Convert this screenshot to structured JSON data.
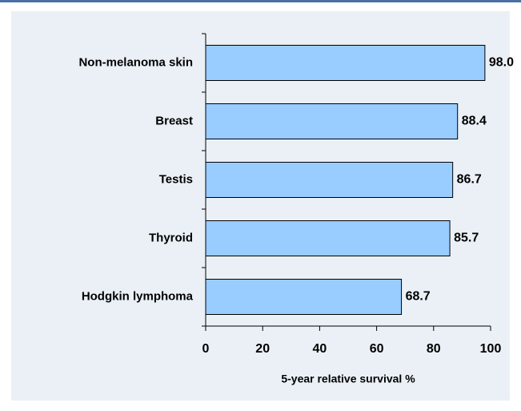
{
  "chart_data": {
    "type": "hbar",
    "categories": [
      "Non-melanoma skin",
      "Breast",
      "Testis",
      "Thyroid",
      "Hodgkin lymphoma"
    ],
    "values": [
      98.0,
      88.4,
      86.7,
      85.7,
      68.7
    ],
    "value_labels": [
      "98.0",
      "88.4",
      "86.7",
      "85.7",
      "68.7"
    ],
    "color": "#99ccff",
    "x_label": "5-year relative survival %",
    "xlim": [
      0,
      100
    ],
    "xticks": [
      0,
      20,
      40,
      60,
      80,
      100
    ]
  }
}
